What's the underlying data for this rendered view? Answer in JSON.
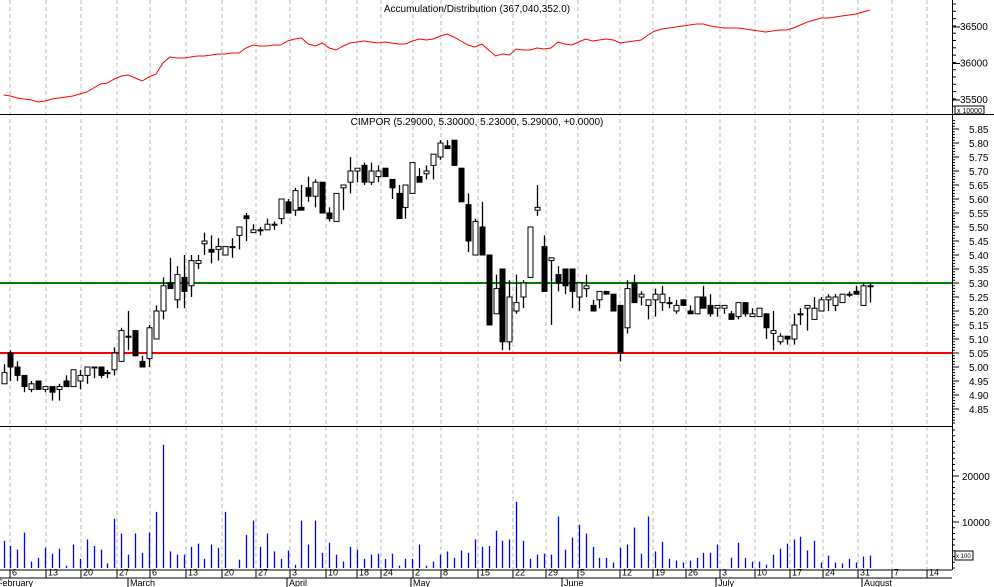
{
  "chart_data": [
    {
      "type": "line",
      "title": "Accumulation/Distribution (367,040,352.0)",
      "y_ticks": [
        35500,
        36000,
        36500
      ],
      "y_multiplier_label": "x 10000",
      "ylim": [
        35450,
        36860
      ],
      "color": "#ff0000",
      "values": [
        35568,
        35555,
        35527,
        35514,
        35500,
        35472,
        35486,
        35514,
        35527,
        35541,
        35555,
        35582,
        35609,
        35664,
        35719,
        35733,
        35788,
        35829,
        35842,
        35801,
        35760,
        35815,
        35856,
        36007,
        36089,
        36075,
        36075,
        36089,
        36103,
        36103,
        36116,
        36130,
        36130,
        36144,
        36144,
        36212,
        36253,
        36240,
        36240,
        36253,
        36253,
        36308,
        36336,
        36349,
        36267,
        36240,
        36281,
        36212,
        36185,
        36240,
        36281,
        36294,
        36308,
        36294,
        36281,
        36294,
        36281,
        36267,
        36267,
        36308,
        36336,
        36322,
        36336,
        36377,
        36404,
        36363,
        36308,
        36253,
        36226,
        36267,
        36185,
        36103,
        36130,
        36116,
        36199,
        36185,
        36185,
        36212,
        36199,
        36212,
        36294,
        36267,
        36253,
        36294,
        36336,
        36308,
        36322,
        36336,
        36322,
        36281,
        36294,
        36308,
        36322,
        36390,
        36445,
        36473,
        36486,
        36500,
        36514,
        36527,
        36541,
        36541,
        36514,
        36500,
        36486,
        36486,
        36486,
        36473,
        36459,
        36445,
        36432,
        36445,
        36459,
        36459,
        36486,
        36527,
        36569,
        36596,
        36623,
        36623,
        36637,
        36651,
        36664,
        36678,
        36706,
        36733
      ]
    },
    {
      "type": "candlestick",
      "title": "CIMPOR (5.29000, 5.30000, 5.23000, 5.29000, +0.0000)",
      "y_ticks": [
        "4.85",
        "4.90",
        "4.95",
        "5.00",
        "5.05",
        "5.10",
        "5.15",
        "5.20",
        "5.25",
        "5.30",
        "5.35",
        "5.40",
        "5.45",
        "5.50",
        "5.55",
        "5.60",
        "5.65",
        "5.70",
        "5.75",
        "5.80",
        "5.85"
      ],
      "ylim": [
        4.78,
        5.88
      ],
      "horizontal_lines": [
        {
          "value": 5.3,
          "color": "#008000"
        },
        {
          "value": 5.05,
          "color": "#ff0000"
        }
      ],
      "ohlc": [
        [
          4.94,
          5.01,
          4.94,
          4.98
        ],
        [
          5.05,
          5.06,
          4.95,
          5.0
        ],
        [
          5.0,
          5.02,
          4.95,
          4.97
        ],
        [
          4.97,
          4.97,
          4.91,
          4.93
        ],
        [
          4.92,
          4.95,
          4.91,
          4.94
        ],
        [
          4.95,
          4.95,
          4.92,
          4.92
        ],
        [
          4.92,
          4.93,
          4.91,
          4.93
        ],
        [
          4.93,
          4.93,
          4.88,
          4.91
        ],
        [
          4.92,
          4.94,
          4.88,
          4.93
        ],
        [
          4.95,
          4.97,
          4.93,
          4.93
        ],
        [
          4.93,
          4.99,
          4.93,
          4.99
        ],
        [
          4.95,
          4.99,
          4.92,
          4.97
        ],
        [
          4.97,
          5.0,
          4.94,
          5.0
        ],
        [
          5.0,
          5.0,
          4.96,
          5.0
        ],
        [
          5.0,
          5.0,
          4.96,
          4.97
        ],
        [
          4.98,
          4.99,
          4.96,
          4.98
        ],
        [
          4.99,
          5.07,
          4.97,
          5.05
        ],
        [
          5.02,
          5.14,
          5.02,
          5.13
        ],
        [
          5.11,
          5.2,
          5.06,
          5.11
        ],
        [
          5.13,
          5.13,
          5.04,
          5.04
        ],
        [
          5.02,
          5.04,
          5.0,
          5.0
        ],
        [
          5.03,
          5.15,
          5.0,
          5.14
        ],
        [
          5.1,
          5.22,
          5.1,
          5.2
        ],
        [
          5.2,
          5.32,
          5.17,
          5.29
        ],
        [
          5.3,
          5.39,
          5.28,
          5.28
        ],
        [
          5.24,
          5.36,
          5.21,
          5.33
        ],
        [
          5.32,
          5.4,
          5.21,
          5.27
        ],
        [
          5.29,
          5.4,
          5.25,
          5.38
        ],
        [
          5.37,
          5.4,
          5.35,
          5.38
        ],
        [
          5.44,
          5.48,
          5.4,
          5.45
        ],
        [
          5.42,
          5.47,
          5.37,
          5.41
        ],
        [
          5.42,
          5.46,
          5.38,
          5.43
        ],
        [
          5.4,
          5.43,
          5.4,
          5.43
        ],
        [
          5.43,
          5.46,
          5.39,
          5.43
        ],
        [
          5.47,
          5.5,
          5.42,
          5.5
        ],
        [
          5.54,
          5.55,
          5.45,
          5.53
        ],
        [
          5.48,
          5.51,
          5.48,
          5.49
        ],
        [
          5.49,
          5.5,
          5.47,
          5.49
        ],
        [
          5.49,
          5.53,
          5.49,
          5.51
        ],
        [
          5.51,
          5.52,
          5.49,
          5.51
        ],
        [
          5.53,
          5.6,
          5.51,
          5.6
        ],
        [
          5.59,
          5.6,
          5.55,
          5.55
        ],
        [
          5.56,
          5.64,
          5.54,
          5.63
        ],
        [
          5.57,
          5.65,
          5.56,
          5.56
        ],
        [
          5.64,
          5.68,
          5.59,
          5.61
        ],
        [
          5.61,
          5.67,
          5.57,
          5.66
        ],
        [
          5.66,
          5.66,
          5.55,
          5.55
        ],
        [
          5.55,
          5.57,
          5.52,
          5.53
        ],
        [
          5.52,
          5.62,
          5.52,
          5.62
        ],
        [
          5.64,
          5.65,
          5.56,
          5.65
        ],
        [
          5.66,
          5.75,
          5.62,
          5.7
        ],
        [
          5.7,
          5.71,
          5.66,
          5.71
        ],
        [
          5.72,
          5.73,
          5.65,
          5.66
        ],
        [
          5.66,
          5.73,
          5.65,
          5.7
        ],
        [
          5.68,
          5.72,
          5.66,
          5.7
        ],
        [
          5.71,
          5.71,
          5.68,
          5.68
        ],
        [
          5.67,
          5.67,
          5.6,
          5.64
        ],
        [
          5.62,
          5.65,
          5.53,
          5.53
        ],
        [
          5.57,
          5.65,
          5.53,
          5.65
        ],
        [
          5.62,
          5.73,
          5.62,
          5.73
        ],
        [
          5.68,
          5.71,
          5.66,
          5.66
        ],
        [
          5.69,
          5.72,
          5.67,
          5.7
        ],
        [
          5.72,
          5.76,
          5.67,
          5.76
        ],
        [
          5.75,
          5.81,
          5.74,
          5.8
        ],
        [
          5.79,
          5.81,
          5.78,
          5.78
        ],
        [
          5.81,
          5.81,
          5.72,
          5.72
        ],
        [
          5.71,
          5.71,
          5.59,
          5.59
        ],
        [
          5.58,
          5.62,
          5.41,
          5.45
        ],
        [
          5.4,
          5.53,
          5.4,
          5.52
        ],
        [
          5.5,
          5.59,
          5.4,
          5.4
        ],
        [
          5.4,
          5.4,
          5.15,
          5.15
        ],
        [
          5.19,
          5.33,
          5.19,
          5.28
        ],
        [
          5.35,
          5.35,
          5.06,
          5.09
        ],
        [
          5.09,
          5.31,
          5.06,
          5.25
        ],
        [
          5.2,
          5.33,
          5.19,
          5.23
        ],
        [
          5.25,
          5.31,
          5.21,
          5.3
        ],
        [
          5.32,
          5.5,
          5.32,
          5.5
        ],
        [
          5.56,
          5.65,
          5.54,
          5.57
        ],
        [
          5.43,
          5.47,
          5.27,
          5.27
        ],
        [
          5.38,
          5.39,
          5.15,
          5.39
        ],
        [
          5.33,
          5.36,
          5.27,
          5.3
        ],
        [
          5.35,
          5.35,
          5.26,
          5.29
        ],
        [
          5.35,
          5.35,
          5.21,
          5.27
        ],
        [
          5.25,
          5.3,
          5.2,
          5.3
        ],
        [
          5.28,
          5.33,
          5.25,
          5.29
        ],
        [
          5.22,
          5.24,
          5.2,
          5.2
        ],
        [
          5.24,
          5.27,
          5.21,
          5.27
        ],
        [
          5.27,
          5.27,
          5.26,
          5.26
        ],
        [
          5.26,
          5.26,
          5.2,
          5.2
        ],
        [
          5.22,
          5.22,
          5.02,
          5.05
        ],
        [
          5.14,
          5.31,
          5.12,
          5.28
        ],
        [
          5.3,
          5.33,
          5.23,
          5.23
        ],
        [
          5.25,
          5.27,
          5.22,
          5.26
        ],
        [
          5.22,
          5.24,
          5.17,
          5.24
        ],
        [
          5.24,
          5.28,
          5.18,
          5.26
        ],
        [
          5.23,
          5.29,
          5.2,
          5.26
        ],
        [
          5.23,
          5.25,
          5.21,
          5.23
        ],
        [
          5.2,
          5.24,
          5.19,
          5.22
        ],
        [
          5.24,
          5.24,
          5.22,
          5.22
        ],
        [
          5.2,
          5.22,
          5.19,
          5.19
        ],
        [
          5.19,
          5.25,
          5.19,
          5.25
        ],
        [
          5.25,
          5.29,
          5.21,
          5.21
        ],
        [
          5.22,
          5.26,
          5.18,
          5.19
        ],
        [
          5.21,
          5.22,
          5.18,
          5.22
        ],
        [
          5.21,
          5.22,
          5.19,
          5.22
        ],
        [
          5.19,
          5.2,
          5.17,
          5.17
        ],
        [
          5.18,
          5.23,
          5.17,
          5.23
        ],
        [
          5.23,
          5.23,
          5.18,
          5.19
        ],
        [
          5.18,
          5.21,
          5.18,
          5.19
        ],
        [
          5.18,
          5.21,
          5.18,
          5.21
        ],
        [
          5.19,
          5.19,
          5.1,
          5.14
        ],
        [
          5.12,
          5.2,
          5.06,
          5.13
        ],
        [
          5.09,
          5.12,
          5.08,
          5.11
        ],
        [
          5.11,
          5.11,
          5.08,
          5.1
        ],
        [
          5.1,
          5.19,
          5.08,
          5.15
        ],
        [
          5.19,
          5.21,
          5.15,
          5.19
        ],
        [
          5.21,
          5.22,
          5.13,
          5.22
        ],
        [
          5.17,
          5.25,
          5.17,
          5.21
        ],
        [
          5.2,
          5.25,
          5.2,
          5.24
        ],
        [
          5.24,
          5.26,
          5.2,
          5.25
        ],
        [
          5.22,
          5.26,
          5.2,
          5.25
        ],
        [
          5.23,
          5.26,
          5.23,
          5.26
        ],
        [
          5.26,
          5.27,
          5.25,
          5.26
        ],
        [
          5.27,
          5.29,
          5.26,
          5.26
        ],
        [
          5.22,
          5.3,
          5.22,
          5.29
        ],
        [
          5.29,
          5.3,
          5.23,
          5.29
        ]
      ]
    },
    {
      "type": "bar",
      "y_ticks": [
        10000,
        20000
      ],
      "y_multiplier_label": "x 100",
      "ylim": [
        0,
        30900
      ],
      "color": "#0000ff",
      "values": [
        5900,
        4800,
        4000,
        7700,
        1400,
        2200,
        4400,
        3100,
        4200,
        500,
        5100,
        2000,
        6200,
        4800,
        4000,
        1000,
        10700,
        7500,
        2900,
        7500,
        3300,
        7700,
        12200,
        26800,
        3600,
        2900,
        2900,
        4600,
        5300,
        2000,
        5100,
        4400,
        12200,
        0,
        1800,
        7200,
        10300,
        4600,
        7500,
        3600,
        2000,
        3800,
        700,
        10300,
        5100,
        10300,
        3300,
        5500,
        2900,
        1400,
        4600,
        4000,
        2000,
        2900,
        3100,
        2000,
        3100,
        500,
        2000,
        2000,
        5100,
        500,
        1400,
        2900,
        3600,
        2200,
        3800,
        3300,
        6200,
        4600,
        4800,
        8100,
        5900,
        6200,
        14400,
        5900,
        2000,
        2900,
        3100,
        2900,
        11200,
        4000,
        6600,
        9400,
        7500,
        4600,
        2200,
        2200,
        1200,
        4400,
        5100,
        8800,
        3100,
        11200,
        3600,
        5700,
        2000,
        1600,
        1200,
        1600,
        2200,
        3300,
        3300,
        5100,
        0,
        2200,
        5500,
        2200,
        1400,
        1400,
        700,
        2900,
        4200,
        5300,
        6200,
        6800,
        3800,
        5900,
        1200,
        2700,
        1200,
        1000,
        2000,
        1200,
        2500,
        2700
      ]
    }
  ],
  "x_axis": {
    "day_labels": [
      "6",
      "13",
      "20",
      "27",
      "6",
      "13",
      "20",
      "27",
      "3",
      "10",
      "18",
      "24",
      "2",
      "8",
      "15",
      "22",
      "29",
      "5",
      "12",
      "19",
      "26",
      "3",
      "10",
      "17",
      "24",
      "31",
      "7",
      "14"
    ],
    "month_labels": [
      "February",
      "March",
      "April",
      "May",
      "June",
      "July",
      "August"
    ]
  }
}
